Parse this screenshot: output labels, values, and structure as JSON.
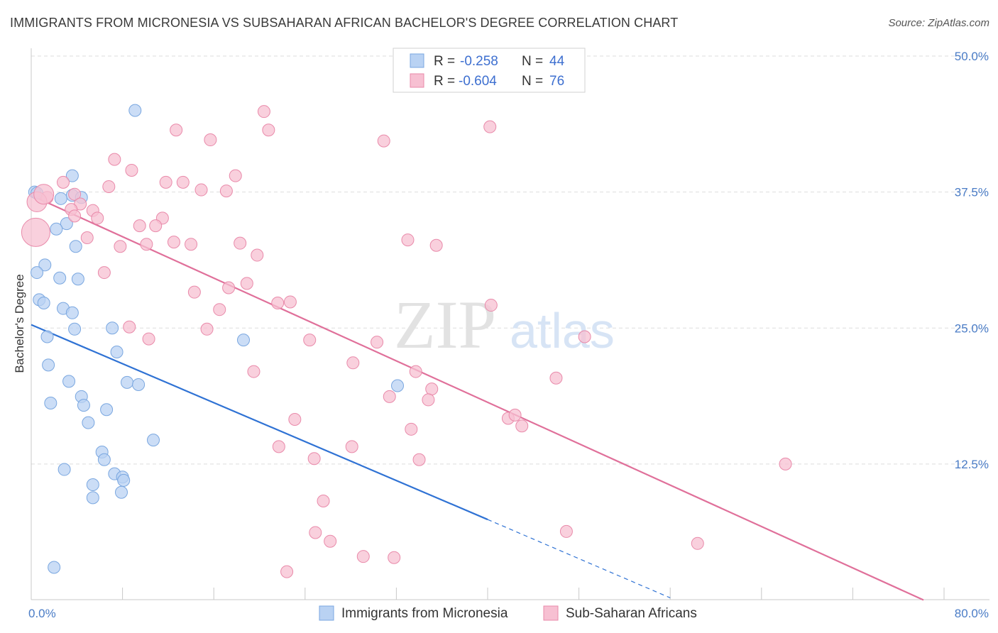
{
  "title": "IMMIGRANTS FROM MICRONESIA VS SUBSAHARAN AFRICAN BACHELOR'S DEGREE CORRELATION CHART",
  "source": "Source: ZipAtlas.com",
  "watermark": {
    "zip": "ZIP",
    "atlas": "atlas"
  },
  "colors": {
    "blue_fill": "#b9d2f3",
    "blue_stroke": "#7aa7e0",
    "blue_line": "#2f72d4",
    "pink_fill": "#f7c0d2",
    "pink_stroke": "#e98aaa",
    "pink_line": "#e0709a",
    "grid": "#dddddd",
    "tick_label": "#4a7cc6"
  },
  "legend_top": {
    "rows": [
      {
        "r_label": "R = ",
        "r_value": "-0.258",
        "n_label": "N = ",
        "n_value": "44",
        "color": "blue"
      },
      {
        "r_label": "R = ",
        "r_value": "-0.604",
        "n_label": "N = ",
        "n_value": "76",
        "color": "pink"
      }
    ]
  },
  "legend_bottom": [
    "Immigrants from Micronesia",
    "Sub-Saharan Africans"
  ],
  "chart_data": {
    "type": "scatter",
    "xlabel": "",
    "ylabel": "Bachelor's Degree",
    "xlim": [
      0,
      80
    ],
    "ylim": [
      0,
      50
    ],
    "x_tick_labels": [
      {
        "v": 0,
        "label": "0.0%"
      },
      {
        "v": 80,
        "label": "80.0%"
      }
    ],
    "y_tick_labels": [
      {
        "v": 12.5,
        "label": "12.5%"
      },
      {
        "v": 25,
        "label": "25.0%"
      },
      {
        "v": 37.5,
        "label": "37.5%"
      },
      {
        "v": 50,
        "label": "50.0%"
      }
    ],
    "grid": true,
    "series": [
      {
        "name": "Immigrants from Micronesia",
        "color": "blue",
        "trend": {
          "x0": 0,
          "y0": 25.3,
          "x1": 40,
          "y1": 7.4,
          "dash_to_x": 56,
          "dash_to_y": 0.2
        },
        "points": [
          [
            9.1,
            45.0
          ],
          [
            3.6,
            39.0
          ],
          [
            0.3,
            37.5
          ],
          [
            3.6,
            37.2
          ],
          [
            4.4,
            37.0
          ],
          [
            2.6,
            36.9
          ],
          [
            3.1,
            34.6
          ],
          [
            2.2,
            34.1
          ],
          [
            3.9,
            32.5
          ],
          [
            1.2,
            30.8
          ],
          [
            0.5,
            30.1
          ],
          [
            2.5,
            29.6
          ],
          [
            4.1,
            29.5
          ],
          [
            0.7,
            27.6
          ],
          [
            1.1,
            27.3
          ],
          [
            2.8,
            26.8
          ],
          [
            3.6,
            26.4
          ],
          [
            3.8,
            24.9
          ],
          [
            7.1,
            25.0
          ],
          [
            1.4,
            24.2
          ],
          [
            18.6,
            23.9
          ],
          [
            7.5,
            22.8
          ],
          [
            1.5,
            21.6
          ],
          [
            3.3,
            20.1
          ],
          [
            8.4,
            20.0
          ],
          [
            9.4,
            19.8
          ],
          [
            32.1,
            19.7
          ],
          [
            4.4,
            18.7
          ],
          [
            1.7,
            18.1
          ],
          [
            4.6,
            17.9
          ],
          [
            6.6,
            17.5
          ],
          [
            5.0,
            16.3
          ],
          [
            10.7,
            14.7
          ],
          [
            6.2,
            13.6
          ],
          [
            6.4,
            12.9
          ],
          [
            2.9,
            12.0
          ],
          [
            7.3,
            11.6
          ],
          [
            8.0,
            11.3
          ],
          [
            8.1,
            11.0
          ],
          [
            5.4,
            10.6
          ],
          [
            7.9,
            9.9
          ],
          [
            5.4,
            9.4
          ],
          [
            2.0,
            3.0
          ],
          [
            0.5,
            37.4
          ]
        ],
        "sizes": {
          "default": 15
        }
      },
      {
        "name": "Sub-Saharan Africans",
        "color": "pink",
        "trend": {
          "x0": 0,
          "y0": 37.2,
          "x1": 78.2,
          "y1": 0
        },
        "points": [
          [
            20.4,
            44.9
          ],
          [
            40.2,
            43.5
          ],
          [
            12.7,
            43.2
          ],
          [
            20.8,
            43.2
          ],
          [
            15.7,
            42.3
          ],
          [
            30.9,
            42.2
          ],
          [
            7.3,
            40.5
          ],
          [
            8.8,
            39.5
          ],
          [
            17.9,
            39.0
          ],
          [
            2.8,
            38.4
          ],
          [
            11.8,
            38.4
          ],
          [
            13.3,
            38.4
          ],
          [
            6.8,
            38.0
          ],
          [
            14.9,
            37.7
          ],
          [
            17.1,
            37.6
          ],
          [
            1.4,
            37.0
          ],
          [
            3.8,
            37.3
          ],
          [
            4.3,
            36.4
          ],
          [
            3.5,
            35.9
          ],
          [
            5.4,
            35.8
          ],
          [
            3.8,
            35.3
          ],
          [
            5.8,
            35.1
          ],
          [
            11.5,
            35.1
          ],
          [
            9.5,
            34.4
          ],
          [
            10.9,
            34.4
          ],
          [
            4.9,
            33.3
          ],
          [
            33.0,
            33.1
          ],
          [
            12.5,
            32.9
          ],
          [
            14.0,
            32.7
          ],
          [
            18.3,
            32.8
          ],
          [
            35.5,
            32.6
          ],
          [
            7.8,
            32.5
          ],
          [
            10.1,
            32.7
          ],
          [
            19.8,
            31.7
          ],
          [
            6.4,
            30.1
          ],
          [
            18.9,
            29.1
          ],
          [
            17.3,
            28.7
          ],
          [
            14.3,
            28.3
          ],
          [
            16.5,
            26.7
          ],
          [
            21.6,
            27.3
          ],
          [
            22.7,
            27.4
          ],
          [
            40.3,
            27.1
          ],
          [
            8.6,
            25.1
          ],
          [
            15.4,
            24.9
          ],
          [
            48.5,
            24.2
          ],
          [
            10.3,
            24.0
          ],
          [
            24.4,
            23.9
          ],
          [
            30.3,
            23.7
          ],
          [
            28.2,
            21.8
          ],
          [
            19.5,
            21.0
          ],
          [
            33.7,
            21.0
          ],
          [
            46.0,
            20.4
          ],
          [
            35.1,
            19.4
          ],
          [
            31.4,
            18.7
          ],
          [
            34.8,
            18.4
          ],
          [
            41.8,
            16.7
          ],
          [
            42.4,
            17.0
          ],
          [
            23.1,
            16.6
          ],
          [
            43.0,
            16.0
          ],
          [
            33.3,
            15.7
          ],
          [
            21.7,
            14.1
          ],
          [
            28.1,
            14.1
          ],
          [
            24.8,
            13.0
          ],
          [
            34.0,
            12.9
          ],
          [
            66.1,
            12.5
          ],
          [
            25.6,
            9.1
          ],
          [
            46.9,
            6.3
          ],
          [
            24.9,
            6.2
          ],
          [
            26.2,
            5.4
          ],
          [
            58.4,
            5.2
          ],
          [
            29.1,
            4.0
          ],
          [
            31.8,
            3.9
          ],
          [
            22.4,
            2.6
          ],
          [
            0.5,
            36.6
          ],
          [
            0.4,
            33.8
          ],
          [
            1.1,
            37.3
          ]
        ],
        "sizes": {
          "default": 15
        }
      }
    ]
  }
}
